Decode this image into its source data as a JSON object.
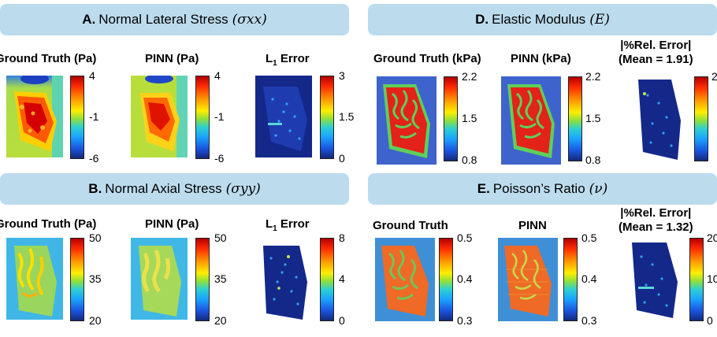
{
  "sections": {
    "A": {
      "letter": "A.",
      "title": "Normal Lateral Stress",
      "symbol": "(σxx)"
    },
    "B": {
      "letter": "B.",
      "title": "Normal Axial Stress",
      "symbol": "(σyy)"
    },
    "D": {
      "letter": "D.",
      "title": "Elastic Modulus",
      "symbol": "(E)"
    },
    "E": {
      "letter": "E.",
      "title": "Poisson’s Ratio",
      "symbol": "(ν)"
    }
  },
  "labels": {
    "ground_truth_pa": "Ground Truth (Pa)",
    "pinn_pa": "PINN (Pa)",
    "l1_error": "L",
    "l1_sub": "1",
    "l1_suffix": " Error",
    "ground_truth_kpa": "Ground Truth (kPa)",
    "pinn_kpa": "PINN (kPa)",
    "ground_truth": "Ground Truth",
    "pinn": "PINN",
    "rel_error": "|%Rel. Error|",
    "mean_D": "(Mean = 1.91)",
    "mean_E": "(Mean = 1.32)"
  },
  "ticks": {
    "A_stress": [
      "4",
      "-1",
      "-6"
    ],
    "A_error": [
      "3",
      "1.5",
      "0"
    ],
    "B_stress": [
      "50",
      "35",
      "20"
    ],
    "B_error": [
      "8",
      "4",
      "0"
    ],
    "D_mod": [
      "2.2",
      "1.5",
      "0.8"
    ],
    "D_err_top": "2",
    "E_nu": [
      "0.5",
      "0.4",
      "0.3"
    ],
    "E_err": [
      "20",
      "10",
      "0"
    ]
  },
  "colors": {
    "header_bg": "#bcdcee",
    "map_background": "#3f63cc",
    "brain_fill": "#e32219",
    "brain_gm": "#5fcf5a",
    "poisson_fill": "#ee6a26"
  }
}
